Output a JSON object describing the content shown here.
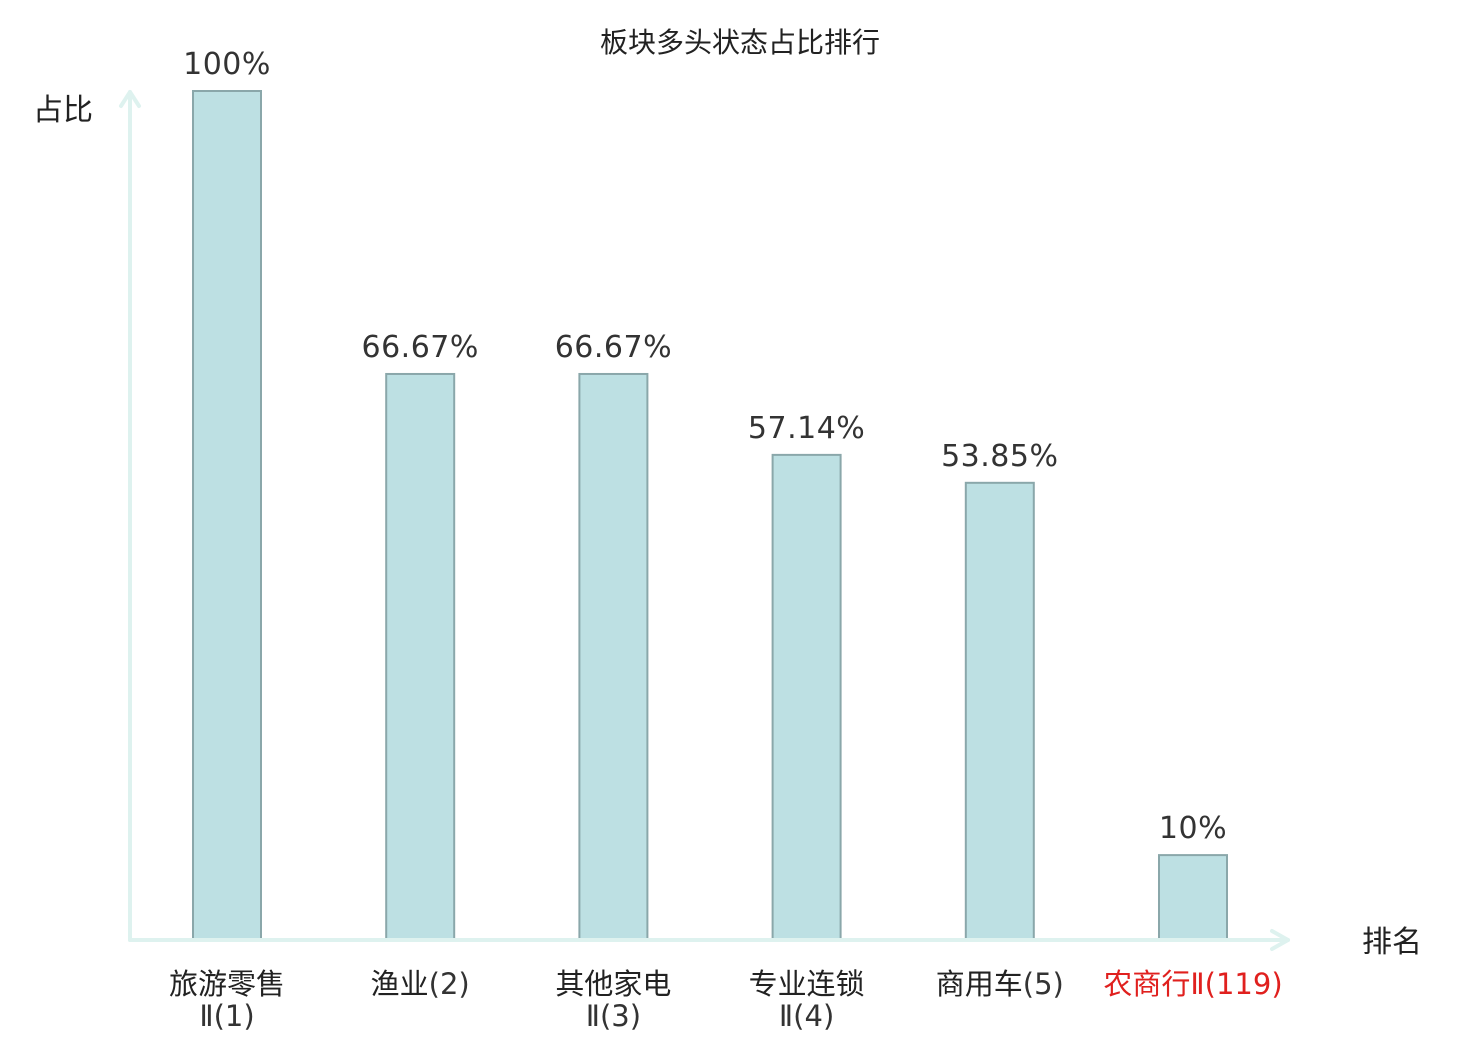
{
  "chart_data": {
    "type": "bar",
    "title": "板块多头状态占比排行",
    "ylabel": "占比",
    "xlabel": "排名",
    "ylim": [
      0,
      100
    ],
    "grid": false,
    "legend": "none",
    "bar_color": "#bde0e3",
    "bar_edge_color": "#8aa7aa",
    "axis_color": "#def2ef",
    "highlight_color": "#e0201e",
    "categories": [
      {
        "name": "旅游零售",
        "code": "Ⅱ(1)",
        "lines": [
          {
            "name": "旅游零售",
            "code": ""
          },
          {
            "name": "",
            "code": "Ⅱ(1)"
          }
        ],
        "highlight": false
      },
      {
        "name": "渔业",
        "code": "(2)",
        "lines": [
          {
            "name": "渔业",
            "code": "(2)"
          }
        ],
        "highlight": false
      },
      {
        "name": "其他家电",
        "code": "Ⅱ(3)",
        "lines": [
          {
            "name": "其他家电",
            "code": ""
          },
          {
            "name": "",
            "code": "Ⅱ(3)"
          }
        ],
        "highlight": false
      },
      {
        "name": "专业连锁",
        "code": "Ⅱ(4)",
        "lines": [
          {
            "name": "专业连锁",
            "code": ""
          },
          {
            "name": "",
            "code": "Ⅱ(4)"
          }
        ],
        "highlight": false
      },
      {
        "name": "商用车",
        "code": "(5)",
        "lines": [
          {
            "name": "商用车",
            "code": "(5)"
          }
        ],
        "highlight": false
      },
      {
        "name": "农商行",
        "code": "Ⅱ(119)",
        "lines": [
          {
            "name": "农商行",
            "code": "Ⅱ(119)"
          }
        ],
        "highlight": true
      }
    ],
    "values": [
      100,
      66.67,
      66.67,
      57.14,
      53.85,
      10
    ],
    "value_labels": [
      "100%",
      "66.67%",
      "66.67%",
      "57.14%",
      "53.85%",
      "10%"
    ]
  }
}
